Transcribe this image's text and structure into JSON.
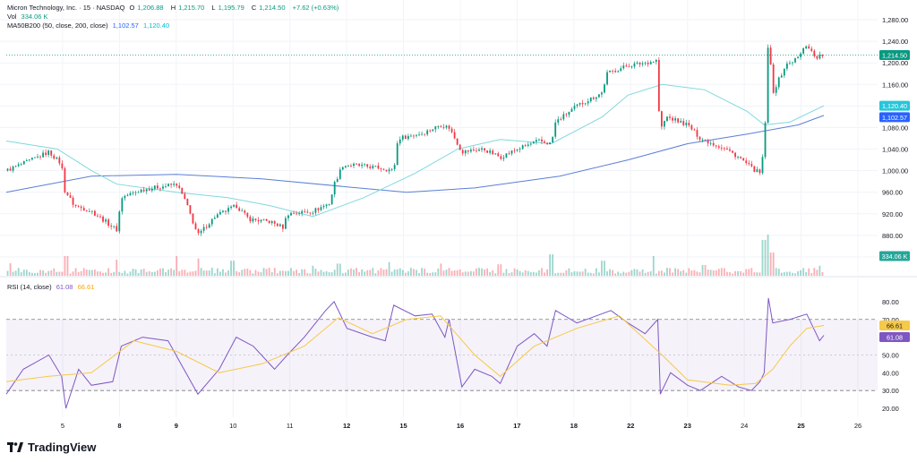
{
  "header": {
    "symbol": "Micron Technology, Inc. · 15 · NASDAQ",
    "o_label": "O",
    "o_value": "1,206.88",
    "h_label": "H",
    "h_value": "1,215.70",
    "l_label": "L",
    "l_value": "1,195.79",
    "c_label": "C",
    "c_value": "1,214.50",
    "change": "+7.62 (+0.63%)",
    "vol_label": "Vol",
    "vol_value": "334.06 K",
    "ma_label": "MA50B200 (50, close, 200, close)",
    "ma_fast_value": "1,102.57",
    "ma_slow_value": "1,120.40"
  },
  "rsi_header": {
    "label": "RSI (14, close)",
    "rsi_value": "61.08",
    "ma_value": "66.61"
  },
  "branding": {
    "name": "TradingView"
  },
  "colors": {
    "up": "#089981",
    "down": "#f23645",
    "ma_fast": "#5b7fd6",
    "ma_slow": "#7fd8e0",
    "rsi": "#7e57c2",
    "rsi_ma": "#f7c948"
  },
  "chart_data": [
    {
      "type": "candlestick",
      "title": "Micron Technology, Inc. · 15 · NASDAQ",
      "x_tick_labels": [
        "5",
        "8",
        "9",
        "10",
        "11",
        "12",
        "15",
        "16",
        "17",
        "18",
        "22",
        "23",
        "24",
        "25",
        "26"
      ],
      "y_tick_labels": [
        "1,280.00",
        "1,240.00",
        "1,200.00",
        "1,160.00",
        "1,120.00",
        "1,080.00",
        "1,040.00",
        "1,000.00",
        "960.00",
        "920.00",
        "880.00",
        "840.00"
      ],
      "ylim": [
        825,
        1300
      ],
      "grid": true,
      "last_price": 1214.5,
      "price_labels": [
        "1,214.50",
        "1,120.40",
        "1,102.57",
        "334.06 K"
      ],
      "price_path": [
        [
          0,
          1000
        ],
        [
          0.03,
          1020
        ],
        [
          0.05,
          1035
        ],
        [
          0.065,
          1012
        ],
        [
          0.068,
          965
        ],
        [
          0.08,
          935
        ],
        [
          0.1,
          925
        ],
        [
          0.13,
          890
        ],
        [
          0.135,
          950
        ],
        [
          0.16,
          965
        ],
        [
          0.2,
          975
        ],
        [
          0.21,
          945
        ],
        [
          0.225,
          880
        ],
        [
          0.245,
          915
        ],
        [
          0.27,
          935
        ],
        [
          0.285,
          910
        ],
        [
          0.31,
          905
        ],
        [
          0.325,
          895
        ],
        [
          0.33,
          920
        ],
        [
          0.36,
          925
        ],
        [
          0.38,
          940
        ],
        [
          0.385,
          975
        ],
        [
          0.395,
          1010
        ],
        [
          0.41,
          1010
        ],
        [
          0.44,
          1005
        ],
        [
          0.455,
          1000
        ],
        [
          0.46,
          1060
        ],
        [
          0.49,
          1070
        ],
        [
          0.51,
          1085
        ],
        [
          0.52,
          1080
        ],
        [
          0.535,
          1035
        ],
        [
          0.56,
          1040
        ],
        [
          0.58,
          1025
        ],
        [
          0.6,
          1040
        ],
        [
          0.625,
          1055
        ],
        [
          0.64,
          1050
        ],
        [
          0.645,
          1090
        ],
        [
          0.67,
          1120
        ],
        [
          0.7,
          1145
        ],
        [
          0.705,
          1180
        ],
        [
          0.73,
          1195
        ],
        [
          0.75,
          1200
        ],
        [
          0.765,
          1205
        ],
        [
          0.767,
          1070
        ],
        [
          0.775,
          1100
        ],
        [
          0.8,
          1085
        ],
        [
          0.815,
          1060
        ],
        [
          0.83,
          1050
        ],
        [
          0.845,
          1040
        ],
        [
          0.86,
          1025
        ],
        [
          0.875,
          1005
        ],
        [
          0.885,
          995
        ],
        [
          0.89,
          1040
        ],
        [
          0.895,
          1250
        ],
        [
          0.9,
          1145
        ],
        [
          0.915,
          1195
        ],
        [
          0.93,
          1210
        ],
        [
          0.94,
          1235
        ],
        [
          0.95,
          1210
        ],
        [
          0.96,
          1214.5
        ]
      ],
      "series": [
        {
          "name": "MA50B200 (50, close, 200, close)",
          "role": "fast",
          "value": 1102.57,
          "values": [
            [
              0,
              960
            ],
            [
              0.1,
              990
            ],
            [
              0.2,
              993
            ],
            [
              0.3,
              985
            ],
            [
              0.4,
              970
            ],
            [
              0.47,
              960
            ],
            [
              0.55,
              968
            ],
            [
              0.65,
              990
            ],
            [
              0.73,
              1020
            ],
            [
              0.8,
              1050
            ],
            [
              0.87,
              1068
            ],
            [
              0.93,
              1085
            ],
            [
              0.96,
              1102.57
            ]
          ]
        },
        {
          "name": "MA50B200 (50, close, 200, close)",
          "role": "slow",
          "value": 1120.4,
          "values": [
            [
              0,
              1055
            ],
            [
              0.06,
              1040
            ],
            [
              0.1,
              1000
            ],
            [
              0.13,
              975
            ],
            [
              0.2,
              960
            ],
            [
              0.26,
              950
            ],
            [
              0.31,
              935
            ],
            [
              0.36,
              915
            ],
            [
              0.42,
              950
            ],
            [
              0.48,
              995
            ],
            [
              0.53,
              1040
            ],
            [
              0.58,
              1058
            ],
            [
              0.64,
              1050
            ],
            [
              0.7,
              1100
            ],
            [
              0.73,
              1140
            ],
            [
              0.77,
              1160
            ],
            [
              0.82,
              1150
            ],
            [
              0.87,
              1110
            ],
            [
              0.89,
              1085
            ],
            [
              0.92,
              1090
            ],
            [
              0.96,
              1120.4
            ]
          ]
        }
      ],
      "volume": {
        "label": "Vol",
        "last_value": "334.06 K",
        "baseline_level": 15,
        "spikes": [
          [
            0.005,
            35
          ],
          [
            0.07,
            55
          ],
          [
            0.13,
            45
          ],
          [
            0.2,
            55
          ],
          [
            0.225,
            48
          ],
          [
            0.265,
            42
          ],
          [
            0.36,
            28
          ],
          [
            0.39,
            34
          ],
          [
            0.45,
            38
          ],
          [
            0.51,
            34
          ],
          [
            0.58,
            32
          ],
          [
            0.64,
            60
          ],
          [
            0.7,
            42
          ],
          [
            0.76,
            55
          ],
          [
            0.82,
            30
          ],
          [
            0.89,
            100
          ],
          [
            0.895,
            115
          ],
          [
            0.9,
            65
          ],
          [
            0.955,
            28
          ]
        ]
      }
    },
    {
      "type": "line",
      "title": "RSI (14, close)",
      "y_tick_labels": [
        "80.00",
        "70.00",
        "50.00",
        "40.00",
        "30.00",
        "20.00"
      ],
      "ylim": [
        15,
        87
      ],
      "band": [
        30,
        70
      ],
      "middle": 50,
      "value_labels": [
        "66.61",
        "61.08"
      ],
      "series": [
        {
          "name": "RSI (14, close)",
          "role": "rsi",
          "last_value": 61.08,
          "values": [
            [
              0,
              28
            ],
            [
              0.02,
              42
            ],
            [
              0.05,
              50
            ],
            [
              0.065,
              38
            ],
            [
              0.07,
              20
            ],
            [
              0.085,
              42
            ],
            [
              0.1,
              33
            ],
            [
              0.125,
              35
            ],
            [
              0.135,
              55
            ],
            [
              0.16,
              60
            ],
            [
              0.19,
              58
            ],
            [
              0.205,
              45
            ],
            [
              0.225,
              28
            ],
            [
              0.25,
              42
            ],
            [
              0.27,
              60
            ],
            [
              0.29,
              55
            ],
            [
              0.315,
              42
            ],
            [
              0.33,
              50
            ],
            [
              0.35,
              60
            ],
            [
              0.375,
              75
            ],
            [
              0.385,
              80
            ],
            [
              0.4,
              65
            ],
            [
              0.43,
              60
            ],
            [
              0.445,
              58
            ],
            [
              0.455,
              78
            ],
            [
              0.48,
              72
            ],
            [
              0.5,
              73
            ],
            [
              0.515,
              60
            ],
            [
              0.52,
              70
            ],
            [
              0.535,
              32
            ],
            [
              0.55,
              42
            ],
            [
              0.57,
              38
            ],
            [
              0.58,
              34
            ],
            [
              0.6,
              55
            ],
            [
              0.62,
              62
            ],
            [
              0.635,
              55
            ],
            [
              0.645,
              75
            ],
            [
              0.67,
              68
            ],
            [
              0.71,
              75
            ],
            [
              0.73,
              68
            ],
            [
              0.75,
              62
            ],
            [
              0.765,
              70
            ],
            [
              0.768,
              28
            ],
            [
              0.78,
              40
            ],
            [
              0.8,
              33
            ],
            [
              0.815,
              30
            ],
            [
              0.84,
              38
            ],
            [
              0.86,
              32
            ],
            [
              0.875,
              30
            ],
            [
              0.885,
              35
            ],
            [
              0.89,
              40
            ],
            [
              0.895,
              82
            ],
            [
              0.9,
              68
            ],
            [
              0.92,
              70
            ],
            [
              0.94,
              73
            ],
            [
              0.955,
              58
            ],
            [
              0.96,
              61.08
            ]
          ]
        },
        {
          "name": "RSI-based MA",
          "role": "rsi_ma",
          "last_value": 66.61,
          "values": [
            [
              0,
              35
            ],
            [
              0.05,
              38
            ],
            [
              0.1,
              40
            ],
            [
              0.15,
              58
            ],
            [
              0.2,
              52
            ],
            [
              0.25,
              40
            ],
            [
              0.3,
              45
            ],
            [
              0.35,
              55
            ],
            [
              0.39,
              71
            ],
            [
              0.43,
              62
            ],
            [
              0.47,
              70
            ],
            [
              0.51,
              72
            ],
            [
              0.55,
              50
            ],
            [
              0.58,
              38
            ],
            [
              0.62,
              55
            ],
            [
              0.67,
              65
            ],
            [
              0.72,
              72
            ],
            [
              0.77,
              50
            ],
            [
              0.8,
              36
            ],
            [
              0.85,
              33
            ],
            [
              0.88,
              34
            ],
            [
              0.9,
              42
            ],
            [
              0.92,
              55
            ],
            [
              0.94,
              65
            ],
            [
              0.96,
              66.61
            ]
          ]
        }
      ]
    }
  ]
}
